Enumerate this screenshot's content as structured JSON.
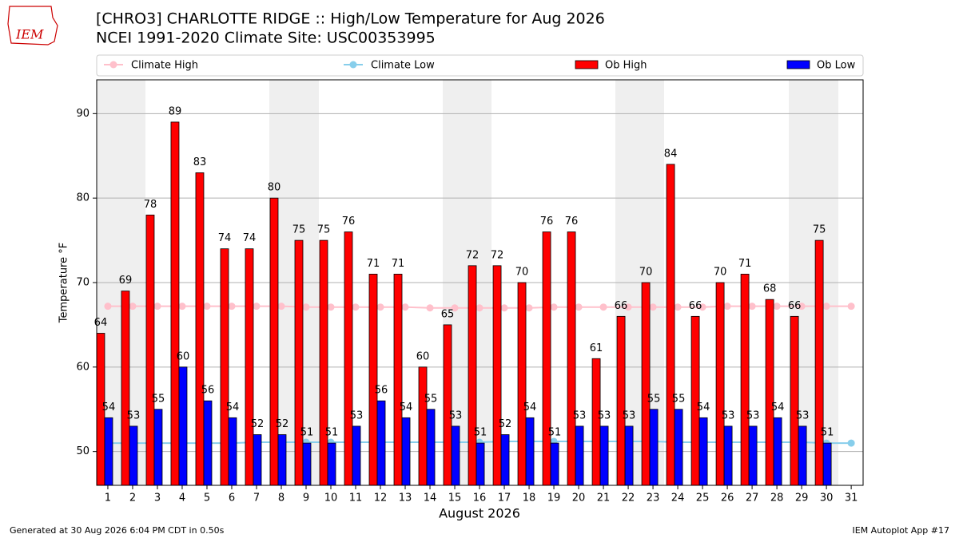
{
  "logo": "IEM",
  "footer": {
    "left": "Generated at 30 Aug 2026 6:04 PM CDT in 0.50s",
    "right": "IEM Autoplot App #17"
  },
  "chart_data": {
    "type": "bar",
    "title": "[CHRO3] CHARLOTTE RIDGE :: High/Low Temperature for Aug 2026",
    "subtitle": "NCEI 1991-2020 Climate Site: USC00353995",
    "xlabel": "August 2026",
    "ylabel": "Temperature °F",
    "categories": [
      "1",
      "2",
      "3",
      "4",
      "5",
      "6",
      "7",
      "8",
      "9",
      "10",
      "11",
      "12",
      "13",
      "14",
      "15",
      "16",
      "17",
      "18",
      "19",
      "20",
      "21",
      "22",
      "23",
      "24",
      "25",
      "26",
      "27",
      "28",
      "29",
      "30",
      "31"
    ],
    "series": [
      {
        "name": "Climate High",
        "kind": "line",
        "color": "#ffc0cb",
        "values": [
          67.2,
          67.2,
          67.2,
          67.2,
          67.2,
          67.2,
          67.2,
          67.2,
          67.1,
          67.1,
          67.1,
          67.1,
          67.1,
          67.0,
          67.0,
          67.0,
          67.0,
          67.0,
          67.1,
          67.1,
          67.1,
          67.1,
          67.1,
          67.1,
          67.1,
          67.2,
          67.2,
          67.2,
          67.2,
          67.2,
          67.2
        ]
      },
      {
        "name": "Climate Low",
        "kind": "line",
        "color": "#87ceeb",
        "values": [
          51.0,
          51.0,
          51.0,
          51.0,
          51.0,
          51.0,
          51.1,
          51.1,
          51.1,
          51.1,
          51.1,
          51.1,
          51.1,
          51.1,
          51.1,
          51.1,
          51.2,
          51.2,
          51.2,
          51.2,
          51.2,
          51.2,
          51.2,
          51.1,
          51.1,
          51.1,
          51.1,
          51.1,
          51.1,
          51.0,
          51.0
        ]
      },
      {
        "name": "Ob High",
        "kind": "bar",
        "color": "#ff0000",
        "values": [
          64,
          69,
          78,
          89,
          83,
          74,
          74,
          80,
          75,
          75,
          76,
          71,
          71,
          60,
          65,
          72,
          72,
          70,
          76,
          76,
          61,
          66,
          70,
          84,
          66,
          70,
          71,
          68,
          66,
          75,
          null
        ]
      },
      {
        "name": "Ob Low",
        "kind": "bar",
        "color": "#0000ff",
        "values": [
          54,
          53,
          55,
          60,
          56,
          54,
          52,
          52,
          51,
          51,
          53,
          56,
          54,
          55,
          53,
          51,
          52,
          54,
          51,
          53,
          53,
          53,
          55,
          55,
          54,
          53,
          53,
          54,
          53,
          51,
          null
        ]
      }
    ],
    "ylim": [
      46,
      94
    ],
    "yticks": [
      50,
      60,
      70,
      80,
      90
    ],
    "xlim": [
      0.55,
      31.48
    ],
    "grid": true
  }
}
